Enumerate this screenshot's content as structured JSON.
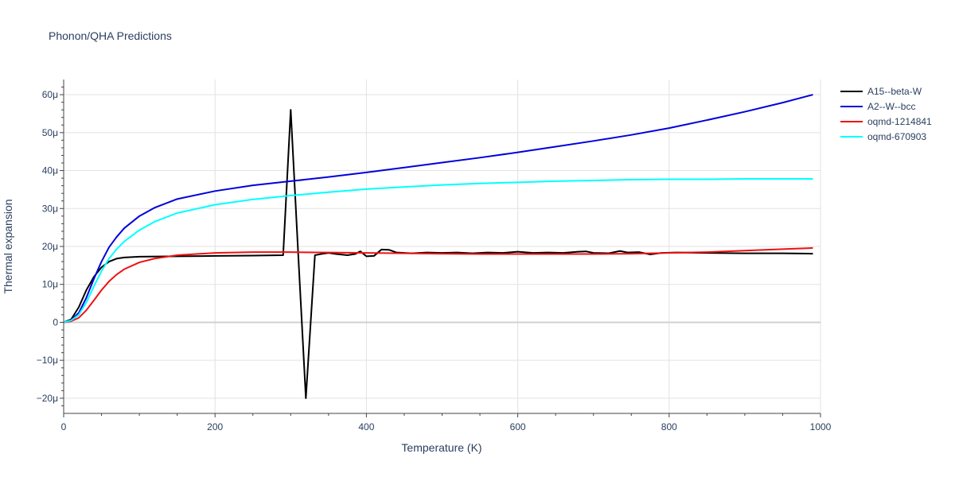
{
  "chart_data": {
    "type": "line",
    "title": "Phonon/QHA Predictions",
    "xlabel": "Temperature (K)",
    "ylabel": "Thermal expansion",
    "xlim": [
      0,
      1000
    ],
    "ylim": [
      -24,
      64
    ],
    "x_ticks": [
      0,
      200,
      400,
      600,
      800,
      1000
    ],
    "x_tick_labels": [
      "0",
      "200",
      "400",
      "600",
      "800",
      "1000"
    ],
    "y_ticks": [
      -20,
      -10,
      0,
      10,
      20,
      30,
      40,
      50,
      60
    ],
    "y_tick_labels": [
      "−20μ",
      "−10μ",
      "0",
      "10μ",
      "20μ",
      "30μ",
      "40μ",
      "50μ",
      "60μ"
    ],
    "y_unit": "1e-6 per K",
    "grid": true,
    "legend_position": "top-right, outside plot",
    "series": [
      {
        "name": "A15--beta-W",
        "color": "#000000",
        "x": [
          0,
          10,
          20,
          30,
          40,
          50,
          60,
          70,
          80,
          100,
          150,
          200,
          250,
          290,
          300,
          310,
          320,
          332,
          340,
          350,
          360,
          375,
          385,
          392,
          400,
          410,
          420,
          430,
          440,
          460,
          480,
          500,
          520,
          540,
          560,
          580,
          600,
          620,
          640,
          660,
          680,
          690,
          700,
          720,
          735,
          745,
          760,
          775,
          790,
          810,
          850,
          900,
          950,
          990
        ],
        "y": [
          0,
          0.8,
          4,
          8.5,
          12,
          14.5,
          16,
          16.8,
          17.1,
          17.3,
          17.4,
          17.5,
          17.6,
          17.7,
          56,
          17.6,
          -20,
          17.7,
          18,
          18.3,
          18,
          17.7,
          18,
          18.7,
          17.4,
          17.5,
          19.2,
          19.1,
          18.4,
          18.2,
          18.4,
          18.3,
          18.4,
          18.2,
          18.4,
          18.3,
          18.6,
          18.3,
          18.4,
          18.3,
          18.6,
          18.7,
          18.3,
          18.2,
          18.8,
          18.4,
          18.5,
          17.9,
          18.3,
          18.4,
          18.3,
          18.2,
          18.2,
          18.1
        ]
      },
      {
        "name": "A2--W--bcc",
        "color": "#0000dd",
        "x": [
          0,
          10,
          20,
          30,
          40,
          50,
          60,
          70,
          80,
          100,
          120,
          150,
          200,
          250,
          300,
          350,
          400,
          450,
          500,
          550,
          600,
          650,
          700,
          750,
          800,
          850,
          900,
          950,
          990
        ],
        "y": [
          0,
          0.6,
          2.5,
          6.5,
          11.5,
          16,
          19.8,
          22.5,
          24.8,
          28,
          30.2,
          32.5,
          34.6,
          36.1,
          37.2,
          38.3,
          39.5,
          40.8,
          42.1,
          43.4,
          44.8,
          46.3,
          47.8,
          49.4,
          51.2,
          53.3,
          55.5,
          57.9,
          60
        ]
      },
      {
        "name": "oqmd-1214841",
        "color": "#ee1111",
        "x": [
          0,
          10,
          20,
          30,
          40,
          50,
          60,
          70,
          80,
          100,
          120,
          150,
          200,
          250,
          300,
          350,
          400,
          450,
          500,
          550,
          600,
          650,
          700,
          750,
          800,
          850,
          900,
          950,
          990
        ],
        "y": [
          0,
          0.3,
          1.2,
          3.2,
          5.8,
          8.5,
          10.8,
          12.6,
          14,
          15.8,
          16.8,
          17.7,
          18.3,
          18.5,
          18.5,
          18.4,
          18.3,
          18.2,
          18.1,
          18,
          18,
          18,
          18,
          18.1,
          18.3,
          18.5,
          18.9,
          19.3,
          19.6
        ]
      },
      {
        "name": "oqmd-670903",
        "color": "#00ffff",
        "x": [
          0,
          10,
          20,
          30,
          40,
          50,
          60,
          70,
          80,
          100,
          120,
          150,
          200,
          250,
          300,
          350,
          400,
          450,
          500,
          550,
          600,
          650,
          700,
          750,
          800,
          850,
          900,
          950,
          990
        ],
        "y": [
          0,
          0.5,
          2,
          5.3,
          9.5,
          13.5,
          16.8,
          19.3,
          21.3,
          24.3,
          26.5,
          28.8,
          31,
          32.4,
          33.4,
          34.3,
          35.1,
          35.7,
          36.2,
          36.6,
          36.9,
          37.2,
          37.4,
          37.6,
          37.7,
          37.7,
          37.8,
          37.8,
          37.8
        ]
      }
    ]
  }
}
